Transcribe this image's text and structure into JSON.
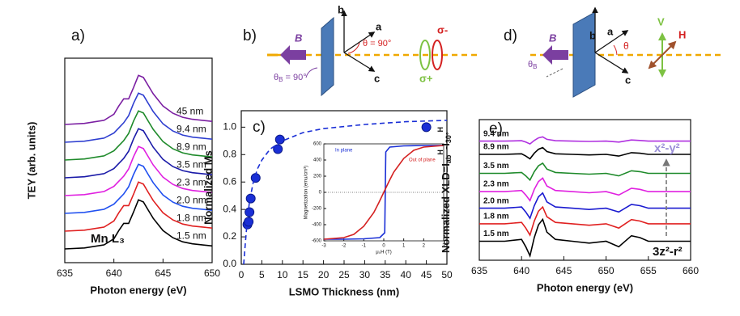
{
  "chart_data": [
    {
      "type": "line",
      "panel_label": "a)",
      "xlabel": "Photon energy (eV)",
      "ylabel": "TEY (arb. units)",
      "x": [
        635,
        637,
        639,
        640,
        640.5,
        641,
        641.5,
        642,
        642.5,
        643,
        643.5,
        644,
        645,
        646,
        647,
        648,
        650
      ],
      "xlim": [
        635,
        650
      ],
      "xticks": [
        635,
        640,
        645,
        650
      ],
      "ylim": [
        0,
        10
      ],
      "annotations": [
        "Mn L₃"
      ],
      "series": [
        {
          "name": "45  nm",
          "color": "#7b1fa2",
          "values": [
            6.76,
            6.81,
            6.96,
            7.26,
            7.66,
            8.01,
            8.01,
            8.56,
            9.16,
            9.06,
            8.66,
            8.26,
            7.66,
            7.31,
            7.11,
            7.01,
            6.91
          ]
        },
        {
          "name": "9.4 nm",
          "color": "#2f3fd0",
          "values": [
            5.89,
            5.94,
            6.09,
            6.34,
            6.59,
            6.84,
            7.19,
            7.79,
            8.29,
            8.19,
            7.79,
            7.39,
            6.79,
            6.44,
            6.24,
            6.14,
            6.04
          ]
        },
        {
          "name": "8.9 nm",
          "color": "#1e8a2a",
          "values": [
            5.02,
            5.07,
            5.22,
            5.47,
            5.72,
            5.97,
            6.32,
            6.92,
            7.42,
            7.32,
            6.92,
            6.52,
            5.92,
            5.57,
            5.37,
            5.27,
            5.17
          ]
        },
        {
          "name": "3.5 nm",
          "color": "#1a1aa8",
          "values": [
            4.15,
            4.2,
            4.35,
            4.6,
            4.85,
            5.1,
            5.45,
            6.05,
            6.55,
            6.45,
            6.05,
            5.65,
            5.05,
            4.7,
            4.5,
            4.4,
            4.3
          ]
        },
        {
          "name": "2.3 nm",
          "color": "#e020e0",
          "values": [
            3.28,
            3.33,
            3.48,
            3.73,
            3.98,
            4.23,
            4.58,
            5.18,
            5.68,
            5.58,
            5.18,
            4.78,
            4.18,
            3.83,
            3.63,
            3.53,
            3.43
          ]
        },
        {
          "name": "2.0 nm",
          "color": "#2050f0",
          "values": [
            2.41,
            2.46,
            2.61,
            2.86,
            3.11,
            3.36,
            3.71,
            4.31,
            4.81,
            4.71,
            4.31,
            3.91,
            3.31,
            2.96,
            2.76,
            2.66,
            2.56
          ]
        },
        {
          "name": "1.8 nm",
          "color": "#e02020",
          "values": [
            1.54,
            1.59,
            1.74,
            2.04,
            2.44,
            2.79,
            2.79,
            3.34,
            3.94,
            3.84,
            3.44,
            3.04,
            2.44,
            2.09,
            1.89,
            1.79,
            1.69
          ]
        },
        {
          "name": "1.5 nm",
          "color": "#000000",
          "values": [
            0.67,
            0.72,
            0.87,
            1.17,
            1.57,
            1.92,
            1.92,
            2.47,
            3.07,
            2.97,
            2.57,
            2.17,
            1.57,
            1.22,
            1.02,
            0.92,
            0.82
          ]
        }
      ]
    },
    {
      "type": "scatter",
      "panel_label": "c)",
      "xlabel": "LSMO Thickness (nm)",
      "ylabel": "Normalized Ms",
      "xlim": [
        0,
        50
      ],
      "xticks": [
        0,
        5,
        10,
        15,
        20,
        25,
        30,
        35,
        40,
        45,
        50
      ],
      "ylim": [
        0,
        1.12
      ],
      "yticks": [
        {
          "value": 0,
          "label": "0.0"
        },
        {
          "value": 0.2,
          "label": "0.2"
        },
        {
          "value": 0.4,
          "label": "0.4"
        },
        {
          "value": 0.6,
          "label": "0.6"
        },
        {
          "value": 0.8,
          "label": "0.8"
        },
        {
          "value": 1,
          "label": "1.0"
        }
      ],
      "series": [
        {
          "color": "#1a2fd6",
          "x": [
            1.5,
            1.8,
            2.0,
            2.3,
            3.5,
            8.9,
            9.4,
            45
          ],
          "values": [
            0.29,
            0.31,
            0.38,
            0.48,
            0.63,
            0.84,
            0.91,
            1.0
          ]
        },
        {
          "type": "line",
          "style": "dashed",
          "color": "#1a2fd6",
          "x": [
            0.6,
            1,
            1.5,
            2,
            3,
            4,
            5,
            7,
            10,
            15,
            20,
            30,
            40,
            50
          ],
          "values": [
            0,
            0.16,
            0.33,
            0.46,
            0.61,
            0.7,
            0.76,
            0.84,
            0.9,
            0.96,
            0.99,
            1.02,
            1.04,
            1.05
          ]
        }
      ]
    },
    {
      "type": "line",
      "xlabel": "μ₀H (T)",
      "ylabel": "Magnetization (emu/cm³)",
      "xlim": [
        -3,
        3
      ],
      "xticks": [
        -3,
        -2,
        -1,
        0,
        1,
        2,
        3
      ],
      "ylim": [
        -600,
        600
      ],
      "yticks": [
        -600,
        -400,
        -200,
        0,
        200,
        400,
        600
      ],
      "series": [
        {
          "name": "In plane",
          "color": "#1a2fd6",
          "x": [
            -3,
            -2,
            -1,
            -0.2,
            0.05,
            0.1,
            0.3,
            1,
            2,
            3
          ],
          "values": [
            -580,
            -580,
            -575,
            -560,
            -500,
            500,
            560,
            575,
            580,
            580
          ]
        },
        {
          "name": "Out of plane",
          "color": "#d42020",
          "x": [
            -3,
            -2,
            -1.5,
            -1,
            -0.5,
            -0.25,
            0,
            0.25,
            0.5,
            1,
            1.5,
            2,
            3
          ],
          "values": [
            -580,
            -560,
            -520,
            -420,
            -250,
            -130,
            0,
            130,
            250,
            420,
            520,
            560,
            580
          ]
        }
      ]
    },
    {
      "type": "line",
      "panel_label": "e)",
      "xlabel": "Photon energy (eV)",
      "ylabel": [
        "Normalized XLD=I",
        "ab",
        "H",
        "-I",
        "30°",
        "H"
      ],
      "x": [
        635,
        638,
        640,
        640.5,
        641,
        641.5,
        642,
        642.5,
        643,
        644,
        646,
        648,
        650,
        651.5,
        653,
        654,
        655,
        657,
        660
      ],
      "xlim": [
        635,
        660
      ],
      "xticks": [
        635,
        640,
        645,
        650,
        655,
        660
      ],
      "ylim": [
        0,
        10
      ],
      "annotations": [
        "x²-y²",
        "3z²-r²"
      ],
      "series": [
        {
          "name": "9.4 nm",
          "color": "#b030e0",
          "values": [
            8.47,
            8.47,
            8.5,
            8.4,
            8.27,
            8.52,
            8.7,
            8.77,
            8.6,
            8.5,
            8.47,
            8.45,
            8.47,
            8.4,
            8.55,
            8.52,
            8.47,
            8.47,
            8.47
          ]
        },
        {
          "name": "8.9 nm",
          "color": "#000000",
          "values": [
            7.53,
            7.53,
            7.57,
            7.41,
            7.21,
            7.61,
            7.89,
            8.01,
            7.73,
            7.57,
            7.53,
            7.49,
            7.53,
            7.41,
            7.65,
            7.61,
            7.53,
            7.53,
            7.53
          ]
        },
        {
          "name": "3.5 nm",
          "color": "#1e8a2a",
          "values": [
            6.18,
            6.18,
            6.24,
            6.0,
            5.7,
            6.3,
            6.72,
            6.9,
            6.48,
            6.24,
            6.18,
            6.12,
            6.18,
            6.0,
            6.36,
            6.3,
            6.18,
            6.18,
            6.18
          ]
        },
        {
          "name": "2.3 nm",
          "color": "#e020e0",
          "values": [
            4.88,
            4.88,
            4.96,
            4.64,
            4.24,
            5.04,
            5.6,
            5.84,
            5.28,
            4.96,
            4.88,
            4.8,
            4.88,
            4.64,
            5.12,
            5.04,
            4.88,
            4.88,
            4.88
          ]
        },
        {
          "name": "2.0 nm",
          "color": "#1a1ad0",
          "values": [
            3.7,
            3.7,
            3.79,
            3.43,
            2.98,
            3.88,
            4.51,
            4.78,
            4.15,
            3.79,
            3.7,
            3.61,
            3.7,
            3.43,
            3.97,
            3.88,
            3.7,
            3.7,
            3.7
          ]
        },
        {
          "name": "1.8 nm",
          "color": "#e02020",
          "values": [
            2.59,
            2.59,
            2.69,
            2.29,
            1.79,
            2.79,
            3.49,
            3.79,
            3.09,
            2.69,
            2.59,
            2.49,
            2.59,
            2.29,
            2.89,
            2.79,
            2.59,
            2.59,
            2.59
          ]
        },
        {
          "name": "1.5 nm",
          "color": "#000000",
          "values": [
            1.35,
            1.35,
            1.48,
            0.96,
            0.31,
            1.61,
            2.52,
            2.91,
            2.0,
            1.48,
            1.35,
            1.22,
            1.35,
            0.96,
            1.74,
            1.61,
            1.35,
            1.35,
            1.35
          ]
        }
      ]
    }
  ],
  "diagrams": [
    {
      "panel_label": "b)",
      "axis_b": "b",
      "axis_a": "a",
      "axis_c": "c",
      "field": "B",
      "theta": "θ = 90°",
      "sigma_minus": "σ-",
      "sigma_plus": "σ+",
      "theta_b": [
        "θ",
        "B",
        " = 90°"
      ]
    },
    {
      "panel_label": "d)",
      "axis_b": "b",
      "axis_a": "a",
      "axis_c": "c",
      "field": "B",
      "theta": "θ",
      "pol_v": "V",
      "pol_h": "H",
      "theta_b": [
        "θ",
        "B"
      ]
    }
  ]
}
